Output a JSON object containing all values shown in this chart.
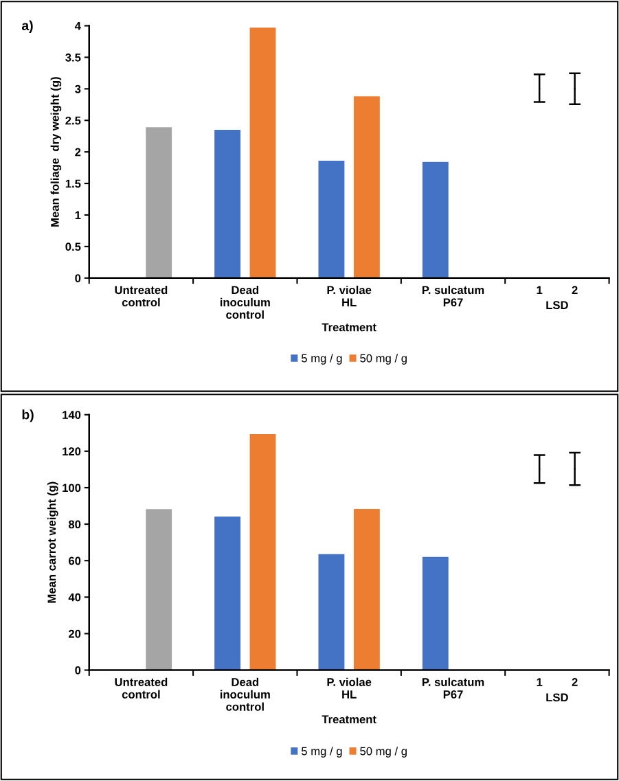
{
  "chart_data": [
    {
      "type": "bar",
      "title": "a)",
      "xlabel": "Treatment",
      "ylabel": "Mean foliage  dry weight (g)",
      "categories": [
        "Untreated\ncontrol",
        "Dead\ninoculum\ncontrol",
        "P. violae\nHL",
        "P. sulcatum\nP67",
        "1",
        "2"
      ],
      "annotations": [
        "LSD"
      ],
      "ylim": [
        0,
        4
      ],
      "yticks": [
        0,
        0.5,
        1,
        1.5,
        2,
        2.5,
        3,
        3.5,
        4
      ],
      "grid": false,
      "legend": "bottom",
      "series": [
        {
          "name": "5 mg / g",
          "color": "#4472c4",
          "values": [
            null,
            2.35,
            1.86,
            1.84,
            null,
            null
          ]
        },
        {
          "name": "50 mg / g",
          "color": "#ed7d31",
          "colors": [
            "#a5a5a5",
            "#ed7d31",
            "#ed7d31",
            "#ed7d31",
            "#ed7d31",
            "#ed7d31"
          ],
          "values": [
            2.39,
            3.97,
            2.88,
            null,
            null,
            null
          ]
        },
        {
          "type": "scatter",
          "color": "#000000",
          "marker": "none",
          "x": [
            "1",
            "2"
          ],
          "values": [
            3.01,
            3.0
          ],
          "errors": [
            0.22,
            0.245
          ]
        }
      ]
    },
    {
      "type": "bar",
      "title": "b)",
      "xlabel": "Treatment",
      "ylabel": "Mean carrot weight (g)",
      "categories": [
        "Untreated\ncontrol",
        "Dead\ninoculum\ncontrol",
        "P. violae\nHL",
        "P. sulcatum\nP67",
        "1",
        "2"
      ],
      "annotations": [
        "LSD"
      ],
      "ylim": [
        0,
        140
      ],
      "yticks": [
        0,
        20,
        40,
        60,
        80,
        100,
        120,
        140
      ],
      "grid": false,
      "legend": "bottom",
      "series": [
        {
          "name": "5 mg / g",
          "color": "#4472c4",
          "values": [
            null,
            84.2,
            63.6,
            62.1,
            null,
            null
          ]
        },
        {
          "name": "50 mg / g",
          "color": "#ed7d31",
          "colors": [
            "#a5a5a5",
            "#ed7d31",
            "#ed7d31",
            "#ed7d31",
            "#ed7d31",
            "#ed7d31"
          ],
          "values": [
            88.2,
            129.4,
            88.3,
            null,
            null,
            null
          ]
        },
        {
          "type": "scatter",
          "color": "#000000",
          "marker": "none",
          "x": [
            "1",
            "2"
          ],
          "values": [
            110.2,
            110.3
          ],
          "errors": [
            7.7,
            8.9
          ]
        }
      ]
    }
  ]
}
